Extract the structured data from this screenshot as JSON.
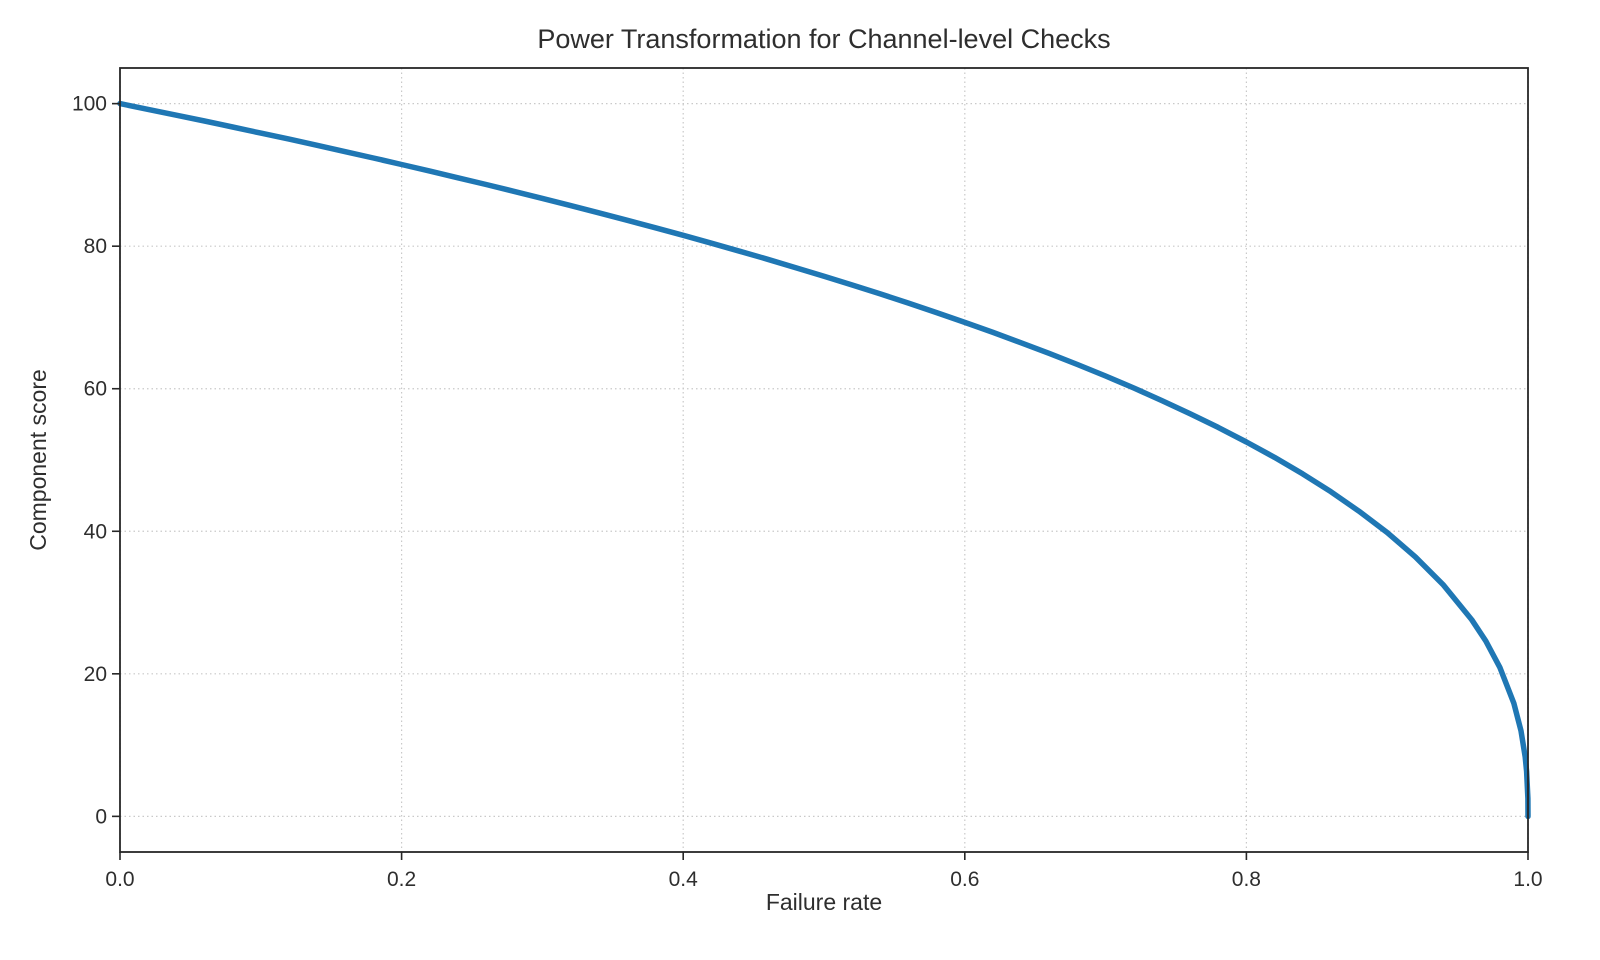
{
  "chart_data": {
    "type": "line",
    "title": "Power Transformation for Channel-level Checks",
    "xlabel": "Failure rate",
    "ylabel": "Component score",
    "xlim": [
      0,
      1
    ],
    "ylim": [
      -5,
      105
    ],
    "x_ticks": [
      0,
      0.2,
      0.4,
      0.6,
      0.8,
      1.0
    ],
    "x_tick_labels": [
      "0.0",
      "0.2",
      "0.4",
      "0.6",
      "0.8",
      "1.0"
    ],
    "y_ticks": [
      0,
      20,
      40,
      60,
      80,
      100
    ],
    "y_tick_labels": [
      "0",
      "20",
      "40",
      "60",
      "80",
      "100"
    ],
    "grid": true,
    "legend": false,
    "line_color": "#1f77b4",
    "series": [
      {
        "name": "component-score",
        "relationship": "y = 100 * (1 - x)^0.4",
        "x": [
          0,
          0.02,
          0.04,
          0.06,
          0.08,
          0.1,
          0.12,
          0.14,
          0.16,
          0.18,
          0.2,
          0.22,
          0.24,
          0.26,
          0.28,
          0.3,
          0.32,
          0.34,
          0.36,
          0.38,
          0.4,
          0.42,
          0.44,
          0.46,
          0.48,
          0.5,
          0.52,
          0.54,
          0.56,
          0.58,
          0.6,
          0.62,
          0.64,
          0.66,
          0.68,
          0.7,
          0.72,
          0.74,
          0.76,
          0.78,
          0.8,
          0.82,
          0.84,
          0.86,
          0.88,
          0.9,
          0.92,
          0.94,
          0.96,
          0.97,
          0.98,
          0.99,
          0.995,
          0.998,
          0.999,
          0.9999,
          1.0
        ],
        "y": [
          100,
          99.19,
          98.38,
          97.56,
          96.72,
          95.87,
          95.02,
          94.15,
          93.26,
          92.37,
          91.46,
          90.54,
          89.6,
          88.65,
          87.69,
          86.7,
          85.7,
          84.69,
          83.65,
          82.6,
          81.52,
          80.42,
          79.3,
          78.16,
          76.98,
          75.79,
          74.56,
          73.3,
          72.01,
          70.68,
          69.31,
          67.91,
          66.45,
          64.95,
          63.4,
          61.78,
          60.1,
          58.34,
          56.5,
          54.57,
          52.53,
          50.36,
          48.05,
          45.55,
          42.82,
          39.81,
          36.41,
          32.45,
          27.59,
          24.6,
          20.91,
          15.85,
          12.01,
          8.33,
          6.31,
          2.51,
          0
        ]
      }
    ]
  }
}
